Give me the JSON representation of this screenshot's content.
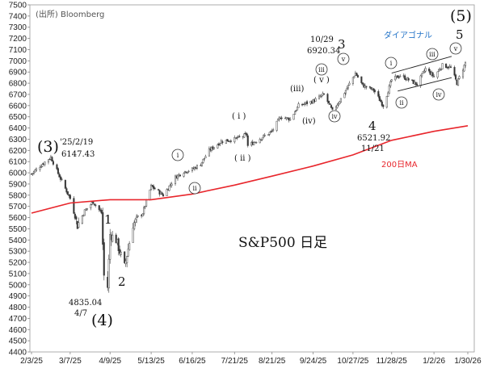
{
  "chart_data": {
    "type": "candlestick",
    "title": "S&P500 日足",
    "source": "(出所) Bloomberg",
    "ylim": [
      4400,
      7500
    ],
    "y_ticks": [
      4400,
      4500,
      4600,
      4700,
      4800,
      4900,
      5000,
      5100,
      5200,
      5300,
      5400,
      5500,
      5600,
      5700,
      5800,
      5900,
      6000,
      6100,
      6200,
      6300,
      6400,
      6500,
      6600,
      6700,
      6800,
      6900,
      7000,
      7100,
      7200,
      7300,
      7400,
      7500
    ],
    "x_ticks": [
      "2/3/25",
      "3/7/25",
      "4/9/25",
      "5/13/25",
      "6/16/25",
      "7/21/25",
      "8/21/25",
      "9/24/25",
      "10/27/25",
      "11/28/25",
      "1/2/26",
      "1/30/26"
    ],
    "price_path": [
      [
        "2/3/25",
        5990
      ],
      [
        "2/10/25",
        6060
      ],
      [
        "2/19/25",
        6140
      ],
      [
        "2/26/25",
        5970
      ],
      [
        "3/7/25",
        5770
      ],
      [
        "3/13/25",
        5530
      ],
      [
        "3/19/25",
        5660
      ],
      [
        "3/26/25",
        5740
      ],
      [
        "4/2/25",
        5640
      ],
      [
        "4/4/25",
        5080
      ],
      [
        "4/7/25",
        4980
      ],
      [
        "4/9/25",
        5450
      ],
      [
        "4/14/25",
        5400
      ],
      [
        "4/21/25",
        5160
      ],
      [
        "4/28/25",
        5540
      ],
      [
        "5/6/25",
        5640
      ],
      [
        "5/13/25",
        5880
      ],
      [
        "5/23/25",
        5800
      ],
      [
        "6/2/25",
        5960
      ],
      [
        "6/9/25",
        6010
      ],
      [
        "6/16/25",
        6030
      ],
      [
        "6/23/25",
        6080
      ],
      [
        "6/30/25",
        6200
      ],
      [
        "7/10/25",
        6280
      ],
      [
        "7/21/25",
        6300
      ],
      [
        "7/31/25",
        6340
      ],
      [
        "8/1/25",
        6240
      ],
      [
        "8/21/25",
        6370
      ],
      [
        "8/28/25",
        6500
      ],
      [
        "9/5/25",
        6480
      ],
      [
        "9/12/25",
        6600
      ],
      [
        "9/24/25",
        6640
      ],
      [
        "10/3/25",
        6700
      ],
      [
        "10/10/25",
        6550
      ],
      [
        "10/17/25",
        6660
      ],
      [
        "10/29/25",
        6890
      ],
      [
        "11/4/25",
        6780
      ],
      [
        "11/13/25",
        6740
      ],
      [
        "11/21/25",
        6600
      ],
      [
        "11/28/25",
        6830
      ],
      [
        "12/5/25",
        6870
      ],
      [
        "12/12/25",
        6830
      ],
      [
        "12/19/25",
        6790
      ],
      [
        "12/26/25",
        6930
      ],
      [
        "1/2/26",
        6860
      ],
      [
        "1/9/26",
        6960
      ],
      [
        "1/16/26",
        6940
      ],
      [
        "1/21/26",
        6800
      ],
      [
        "1/28/26",
        6980
      ]
    ],
    "ma200": {
      "name": "200日MA",
      "color": "#e8262c",
      "points": [
        [
          "2/3/25",
          5640
        ],
        [
          "3/7/25",
          5730
        ],
        [
          "4/9/25",
          5760
        ],
        [
          "5/13/25",
          5760
        ],
        [
          "6/16/25",
          5810
        ],
        [
          "7/21/25",
          5890
        ],
        [
          "8/21/25",
          5970
        ],
        [
          "9/24/25",
          6060
        ],
        [
          "10/27/25",
          6160
        ],
        [
          "11/28/25",
          6290
        ],
        [
          "1/2/26",
          6370
        ],
        [
          "1/30/26",
          6420
        ]
      ]
    },
    "channel": {
      "label": "ダイアゴナル",
      "upper": [
        [
          "11/28/25",
          6890
        ],
        [
          "1/30/26",
          7040
        ]
      ],
      "lower": [
        [
          "12/3/25",
          6730
        ],
        [
          "1/30/26",
          6850
        ]
      ]
    },
    "annotations": {
      "wave_3_big": "(3)",
      "wave_3_note": "'25/2/19",
      "wave_3_value": "6147.43",
      "wave_4_big": "(4)",
      "wave_4_value": "4835.04",
      "wave_4_date": "4/7",
      "wave_5_big": "(5)",
      "wave_1": "1",
      "wave_2": "2",
      "wave_3": "3",
      "wave_3_date": "10/29",
      "wave_3_top": "6920.34",
      "wave_4": "4",
      "wave_4_low": "6521.92",
      "wave_4_low_date": "11/21",
      "wave_5": "5",
      "sub_i": "( i )",
      "sub_ii": "( ii )",
      "sub_iii": "(iii)",
      "sub_iv": "(iv)",
      "sub_v": "( v )",
      "circ_i": "i",
      "circ_ii": "ii",
      "circ_iii": "iii",
      "circ_iv": "iv",
      "circ_v": "v"
    }
  }
}
